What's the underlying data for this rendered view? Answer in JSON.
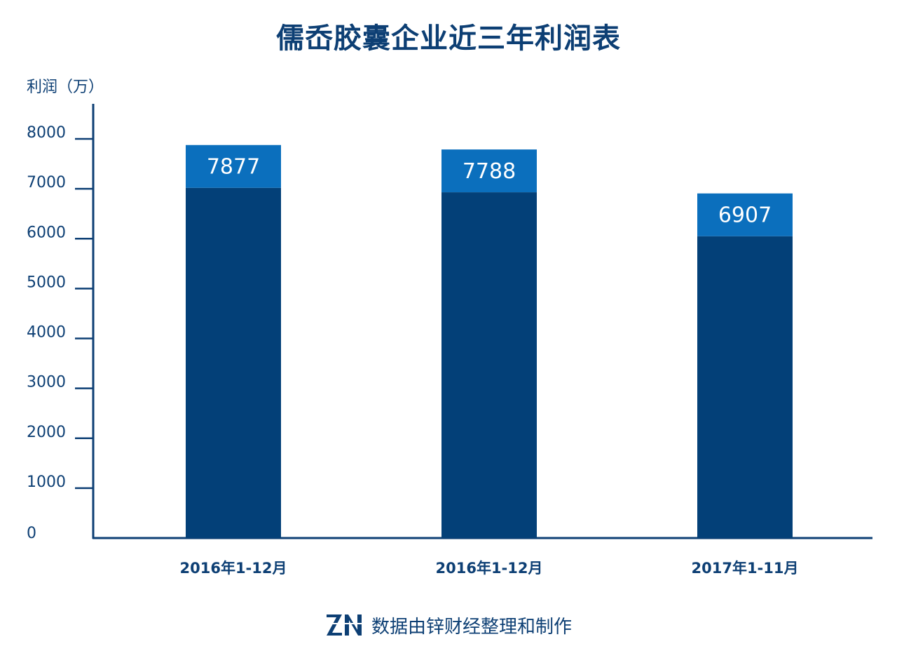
{
  "title": "儒岙胶囊企业近三年利润表",
  "footer": {
    "logo_text": "ZN",
    "text": "数据由锌财经整理和制作"
  },
  "colors": {
    "dark_bar": "#034078",
    "light_cap": "#0b6fbd",
    "axis": "#0d3f74",
    "text": "#0d3f74"
  },
  "chart_data": {
    "type": "bar",
    "title": "儒岙胶囊企业近三年利润表",
    "ylabel": "利润（万）",
    "xlabel": "",
    "categories": [
      "2016年1-12月",
      "2016年1-12月",
      "2017年1-11月"
    ],
    "values": [
      7877,
      7788,
      6907
    ],
    "value_labels": [
      "7877",
      "7788",
      "6907"
    ],
    "ylim": [
      0,
      8000
    ],
    "yticks": [
      0,
      1000,
      2000,
      3000,
      4000,
      5000,
      6000,
      7000,
      8000
    ],
    "ytick_labels": [
      "0",
      "1000",
      "2000",
      "3000",
      "4000",
      "5000",
      "6000",
      "7000",
      "8000"
    ],
    "grid": false,
    "legend": "none"
  }
}
